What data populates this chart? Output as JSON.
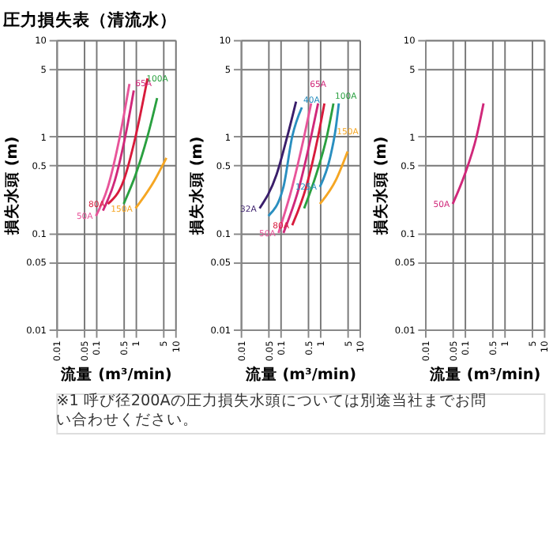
{
  "chart_data": [
    {
      "type": "line",
      "title": "圧力損失表（清流水）",
      "xlabel": "流量 (m³/min)",
      "ylabel": "損失水頭 (m)",
      "log": "xy",
      "grid": true,
      "legend": false,
      "xlim": [
        0.01,
        10
      ],
      "xticks": [
        0.01,
        0.05,
        0.1,
        0.5,
        1,
        5,
        10
      ],
      "ylim": [
        0.01,
        10
      ],
      "yticks": [
        0.01,
        0.05,
        0.1,
        0.5,
        1,
        5,
        10
      ],
      "annotations": [
        "※1 呼び径200Aの圧力損失水頭については別途当社までお問い合わせください。"
      ],
      "series": [
        {
          "name": "50A",
          "color": "#e8559a",
          "x": [
            0.1,
            0.2,
            0.4,
            0.7
          ],
          "values": [
            0.15,
            0.3,
            1,
            3.5
          ]
        },
        {
          "name": "65A",
          "color": "#d0287a",
          "x": [
            0.15,
            0.3,
            0.6,
            0.9
          ],
          "values": [
            0.17,
            0.35,
            1.2,
            3
          ]
        },
        {
          "name": "80A",
          "color": "#d81b3c",
          "x": [
            0.2,
            0.5,
            1,
            2
          ],
          "values": [
            0.2,
            0.35,
            1,
            4
          ]
        },
        {
          "name": "100A",
          "color": "#2aa040",
          "x": [
            0.5,
            1,
            2,
            3.5
          ],
          "values": [
            0.2,
            0.4,
            1,
            2.5
          ]
        },
        {
          "name": "150A",
          "color": "#f5a623",
          "x": [
            1,
            3,
            6
          ],
          "values": [
            0.18,
            0.35,
            0.6
          ]
        }
      ]
    },
    {
      "type": "line",
      "xlabel": "流量 (m³/min)",
      "ylabel": "損失水頭 (m)",
      "log": "xy",
      "grid": true,
      "legend": false,
      "xlim": [
        0.01,
        10
      ],
      "xticks": [
        0.01,
        0.05,
        0.1,
        0.5,
        1,
        5,
        10
      ],
      "ylim": [
        0.01,
        10
      ],
      "yticks": [
        0.01,
        0.05,
        0.1,
        0.5,
        1,
        5,
        10
      ],
      "series": [
        {
          "name": "32A",
          "color": "#3a1e6b",
          "x": [
            0.03,
            0.08,
            0.15,
            0.25
          ],
          "values": [
            0.18,
            0.4,
            1,
            2.3
          ]
        },
        {
          "name": "40A",
          "color": "#2a8fc0",
          "x": [
            0.05,
            0.12,
            0.2,
            0.35
          ],
          "values": [
            0.15,
            0.3,
            1,
            2
          ]
        },
        {
          "name": "50A",
          "color": "#e8559a",
          "x": [
            0.09,
            0.2,
            0.4,
            0.6
          ],
          "values": [
            0.1,
            0.3,
            1,
            2.2
          ]
        },
        {
          "name": "65A",
          "color": "#d0287a",
          "x": [
            0.12,
            0.3,
            0.6,
            0.9
          ],
          "values": [
            0.1,
            0.3,
            1,
            2.2
          ]
        },
        {
          "name": "80A",
          "color": "#d81b3c",
          "x": [
            0.2,
            0.45,
            0.9,
            1.3
          ],
          "values": [
            0.12,
            0.3,
            1,
            2.2
          ]
        },
        {
          "name": "100A",
          "color": "#2aa040",
          "x": [
            0.4,
            0.8,
            1.5,
            2.2
          ],
          "values": [
            0.18,
            0.4,
            1,
            2.2
          ]
        },
        {
          "name": "125A",
          "color": "#2a8fc0",
          "x": [
            1,
            1.8,
            2.5,
            3
          ],
          "values": [
            0.3,
            0.6,
            1.2,
            2.2
          ]
        },
        {
          "name": "150A",
          "color": "#f5a623",
          "x": [
            1,
            2.5,
            5
          ],
          "values": [
            0.2,
            0.35,
            0.7
          ]
        }
      ]
    },
    {
      "type": "line",
      "xlabel": "流量 (m³/min)",
      "ylabel": "損失水頭 (m)",
      "log": "xy",
      "grid": true,
      "legend": false,
      "xlim": [
        0.01,
        10
      ],
      "xticks": [
        0.01,
        0.05,
        0.1,
        0.5,
        1,
        5,
        10
      ],
      "ylim": [
        0.01,
        10
      ],
      "yticks": [
        0.01,
        0.05,
        0.1,
        0.5,
        1,
        5,
        10
      ],
      "series": [
        {
          "name": "50A",
          "color": "#d0287a",
          "x": [
            0.05,
            0.1,
            0.2,
            0.3
          ],
          "values": [
            0.2,
            0.4,
            1,
            2.2
          ]
        }
      ]
    }
  ]
}
